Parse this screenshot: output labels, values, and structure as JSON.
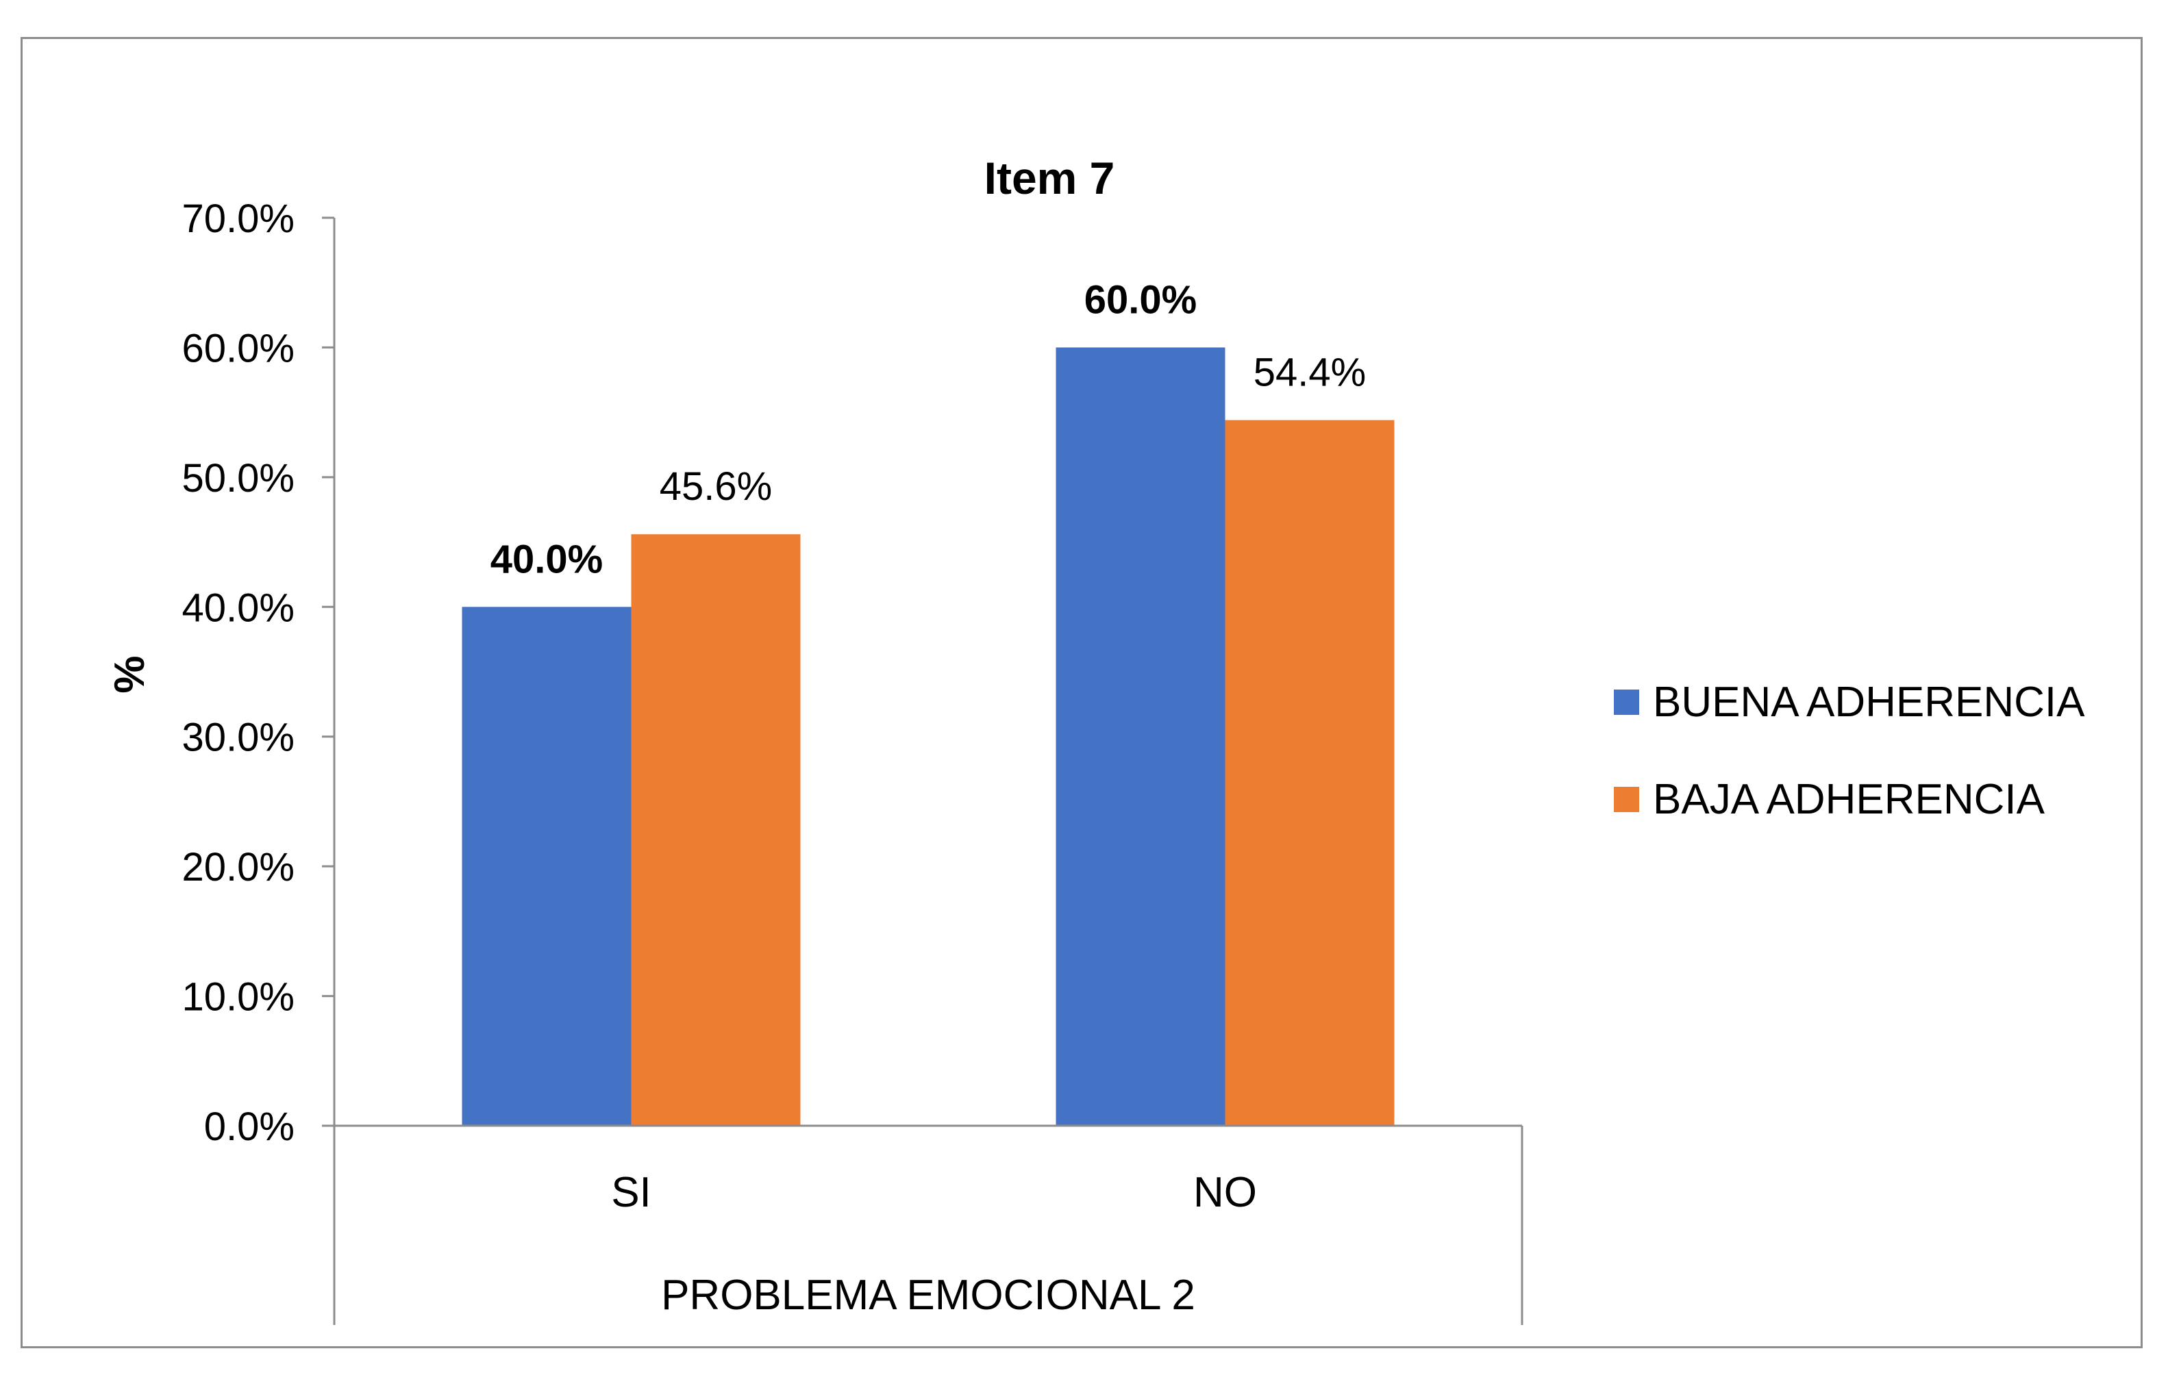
{
  "chart_data": {
    "type": "bar",
    "title": "Item 7",
    "ylabel": "%",
    "xlabel": "PROBLEMA EMOCIONAL 2",
    "categories": [
      "SI",
      "NO"
    ],
    "ylim": [
      0,
      70
    ],
    "ytick_step": 10,
    "ytick_labels": [
      "0.0%",
      "10.0%",
      "20.0%",
      "30.0%",
      "40.0%",
      "50.0%",
      "60.0%",
      "70.0%"
    ],
    "series": [
      {
        "name": "BUENA ADHERENCIA",
        "color": "#4472C4",
        "values": [
          40.0,
          60.0
        ],
        "labels": [
          "40.0%",
          "60.0%"
        ],
        "label_bold": true
      },
      {
        "name": "BAJA ADHERENCIA",
        "color": "#ED7D31",
        "values": [
          45.6,
          54.4
        ],
        "labels": [
          "45.6%",
          "54.4%"
        ],
        "label_bold": false
      }
    ],
    "grid": false,
    "legend_position": "right"
  }
}
